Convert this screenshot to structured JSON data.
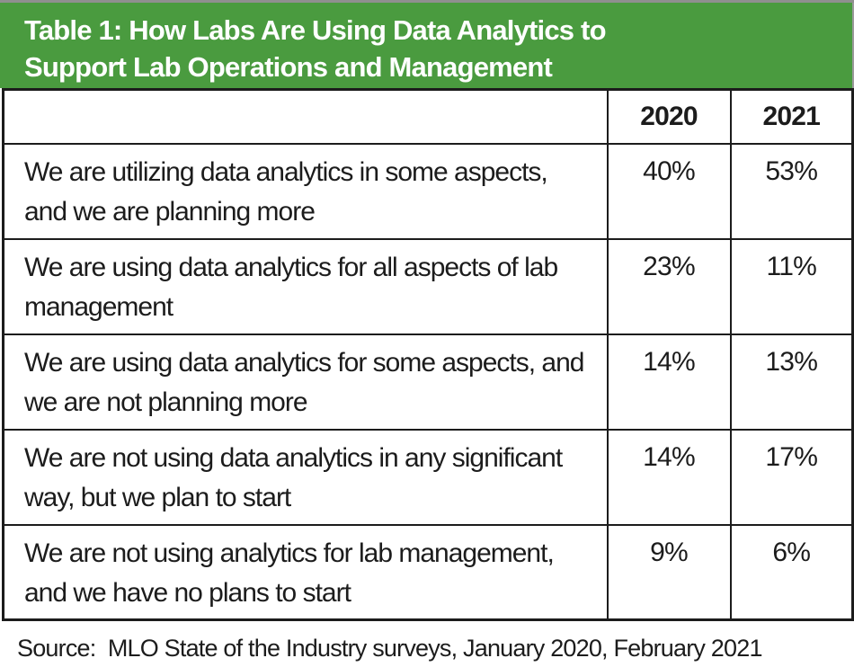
{
  "banner": {
    "title_line1": "Table 1: How Labs Are Using Data Analytics to",
    "title_line2": "Support Lab Operations and Management",
    "bg_color": "#4a9b3f",
    "text_color": "#ffffff"
  },
  "table": {
    "columns": [
      "",
      "2020",
      "2021"
    ],
    "rows": [
      {
        "statement": "We are utilizing data analytics in some aspects, and we are planning more",
        "y2020": "40%",
        "y2021": "53%"
      },
      {
        "statement": "We are using data analytics for all aspects of lab management",
        "y2020": "23%",
        "y2021": "11%"
      },
      {
        "statement": "We are using data analytics for some aspects, and we are not planning more",
        "y2020": "14%",
        "y2021": "13%"
      },
      {
        "statement": "We are not using data analytics in any significant way, but we plan to start",
        "y2020": "14%",
        "y2021": "17%"
      },
      {
        "statement": "We are not using analytics for lab management, and we have no plans to start",
        "y2020": "9%",
        "y2021": "6%"
      }
    ]
  },
  "source": "Source:  MLO State of the Industry surveys, January 2020, February 2021",
  "chart_data": {
    "type": "table",
    "title": "Table 1: How Labs Are Using Data Analytics to Support Lab Operations and Management",
    "categories": [
      "We are utilizing data analytics in some aspects, and we are planning more",
      "We are using data analytics for all aspects of lab management",
      "We are using data analytics for some aspects, and we are not planning more",
      "We are not using data analytics in any significant way, but we plan to start",
      "We are not using analytics for lab management, and we have no plans to start"
    ],
    "series": [
      {
        "name": "2020",
        "values": [
          40,
          23,
          14,
          14,
          9
        ]
      },
      {
        "name": "2021",
        "values": [
          53,
          11,
          13,
          17,
          6
        ]
      }
    ],
    "unit": "%",
    "source": "MLO State of the Industry surveys, January 2020, February 2021"
  }
}
